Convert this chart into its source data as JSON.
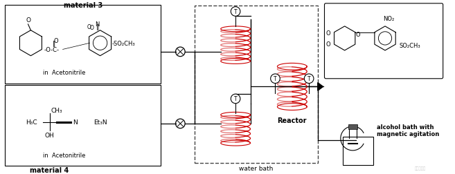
{
  "bg_color": "#ffffff",
  "lc": "#000000",
  "rc": "#cc0000",
  "mat3_label": "material 3",
  "mat4_label": "material 4",
  "waterbath_label": "water bath",
  "reactor_label": "Reactor",
  "alcohol_label": "alcohol bath with\nmagnetic agitation",
  "in_aceto": "in  Acetonitrile"
}
